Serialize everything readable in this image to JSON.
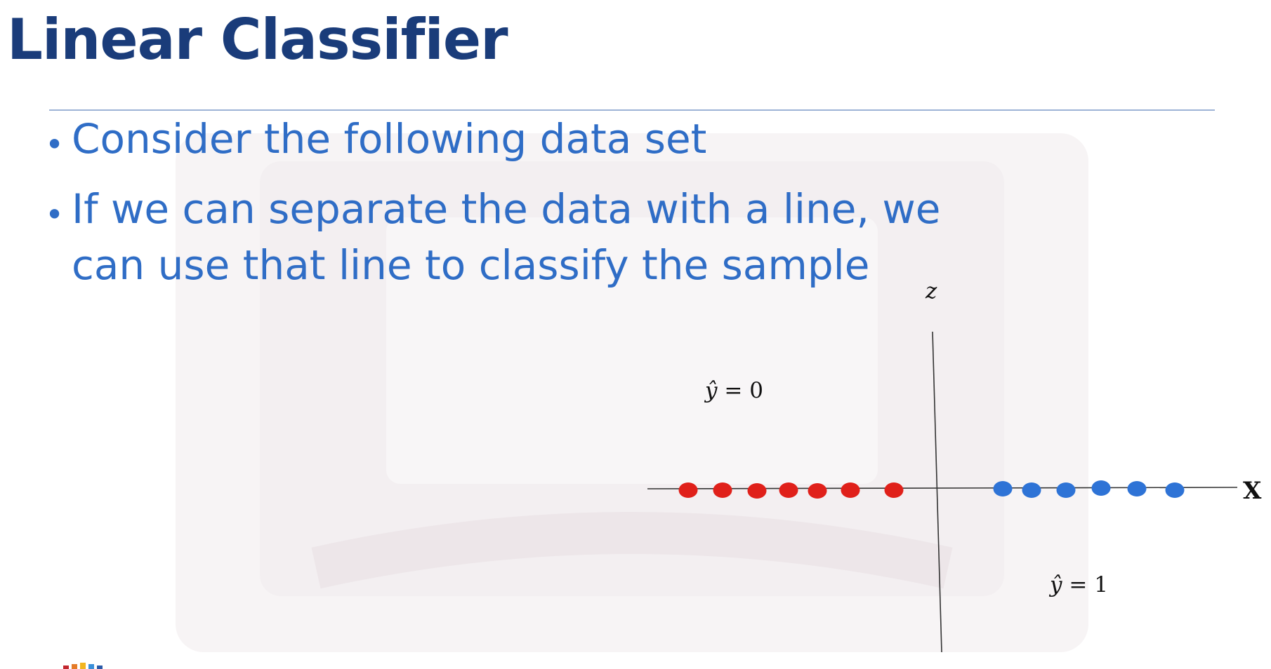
{
  "slide": {
    "title": "Linear Classifier",
    "bullets": [
      "Consider the following data set",
      "If we can separate the data with a line, we can use that line to classify the sample"
    ]
  },
  "diagram": {
    "vertical_axis_label": "z",
    "horizontal_axis_label": "X",
    "region_label_left": {
      "hat": "ŷ",
      "rest": " = 0"
    },
    "region_label_right": {
      "hat": "ŷ",
      "rest": " = 1"
    },
    "class_colors": {
      "class_0": "#e0201a",
      "class_1": "#2e73d6"
    },
    "class_0_point_count": 7,
    "class_1_point_count": 6
  },
  "colors": {
    "title": "#1a3c7a",
    "bullet_text": "#2f6dc6",
    "rule": "#9db3d6"
  }
}
